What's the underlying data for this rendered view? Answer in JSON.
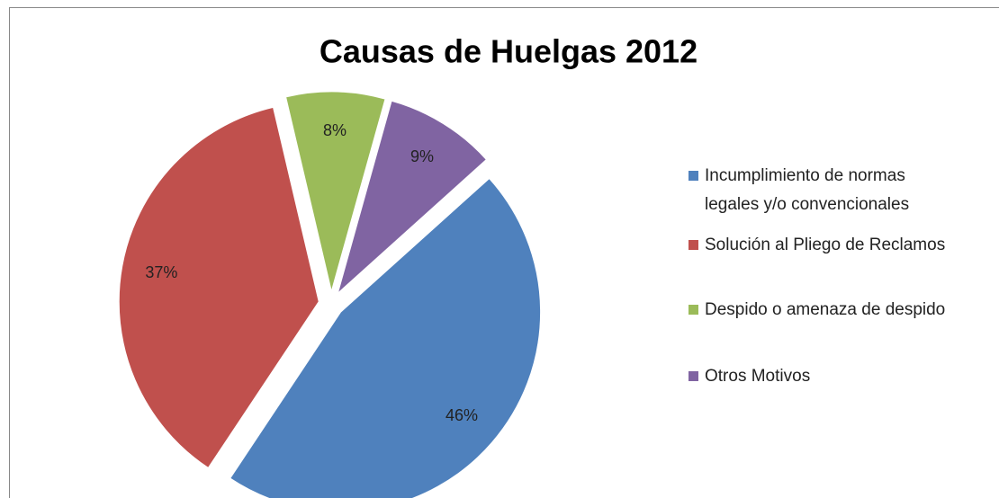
{
  "chart_data": {
    "type": "pie",
    "title": "Causas de Huelgas 2012",
    "categories": [
      "Incumplimiento de normas legales y/o convencionales",
      "Solución al Pliego de Reclamos",
      "Despido o amenaza de despido",
      "Otros Motivos"
    ],
    "values": [
      46,
      37,
      8,
      9
    ],
    "value_labels": [
      "46%",
      "37%",
      "8%",
      "9%"
    ],
    "colors": [
      "#4f81bd",
      "#c0504d",
      "#9bbb59",
      "#8064a2"
    ],
    "legend": "right"
  }
}
